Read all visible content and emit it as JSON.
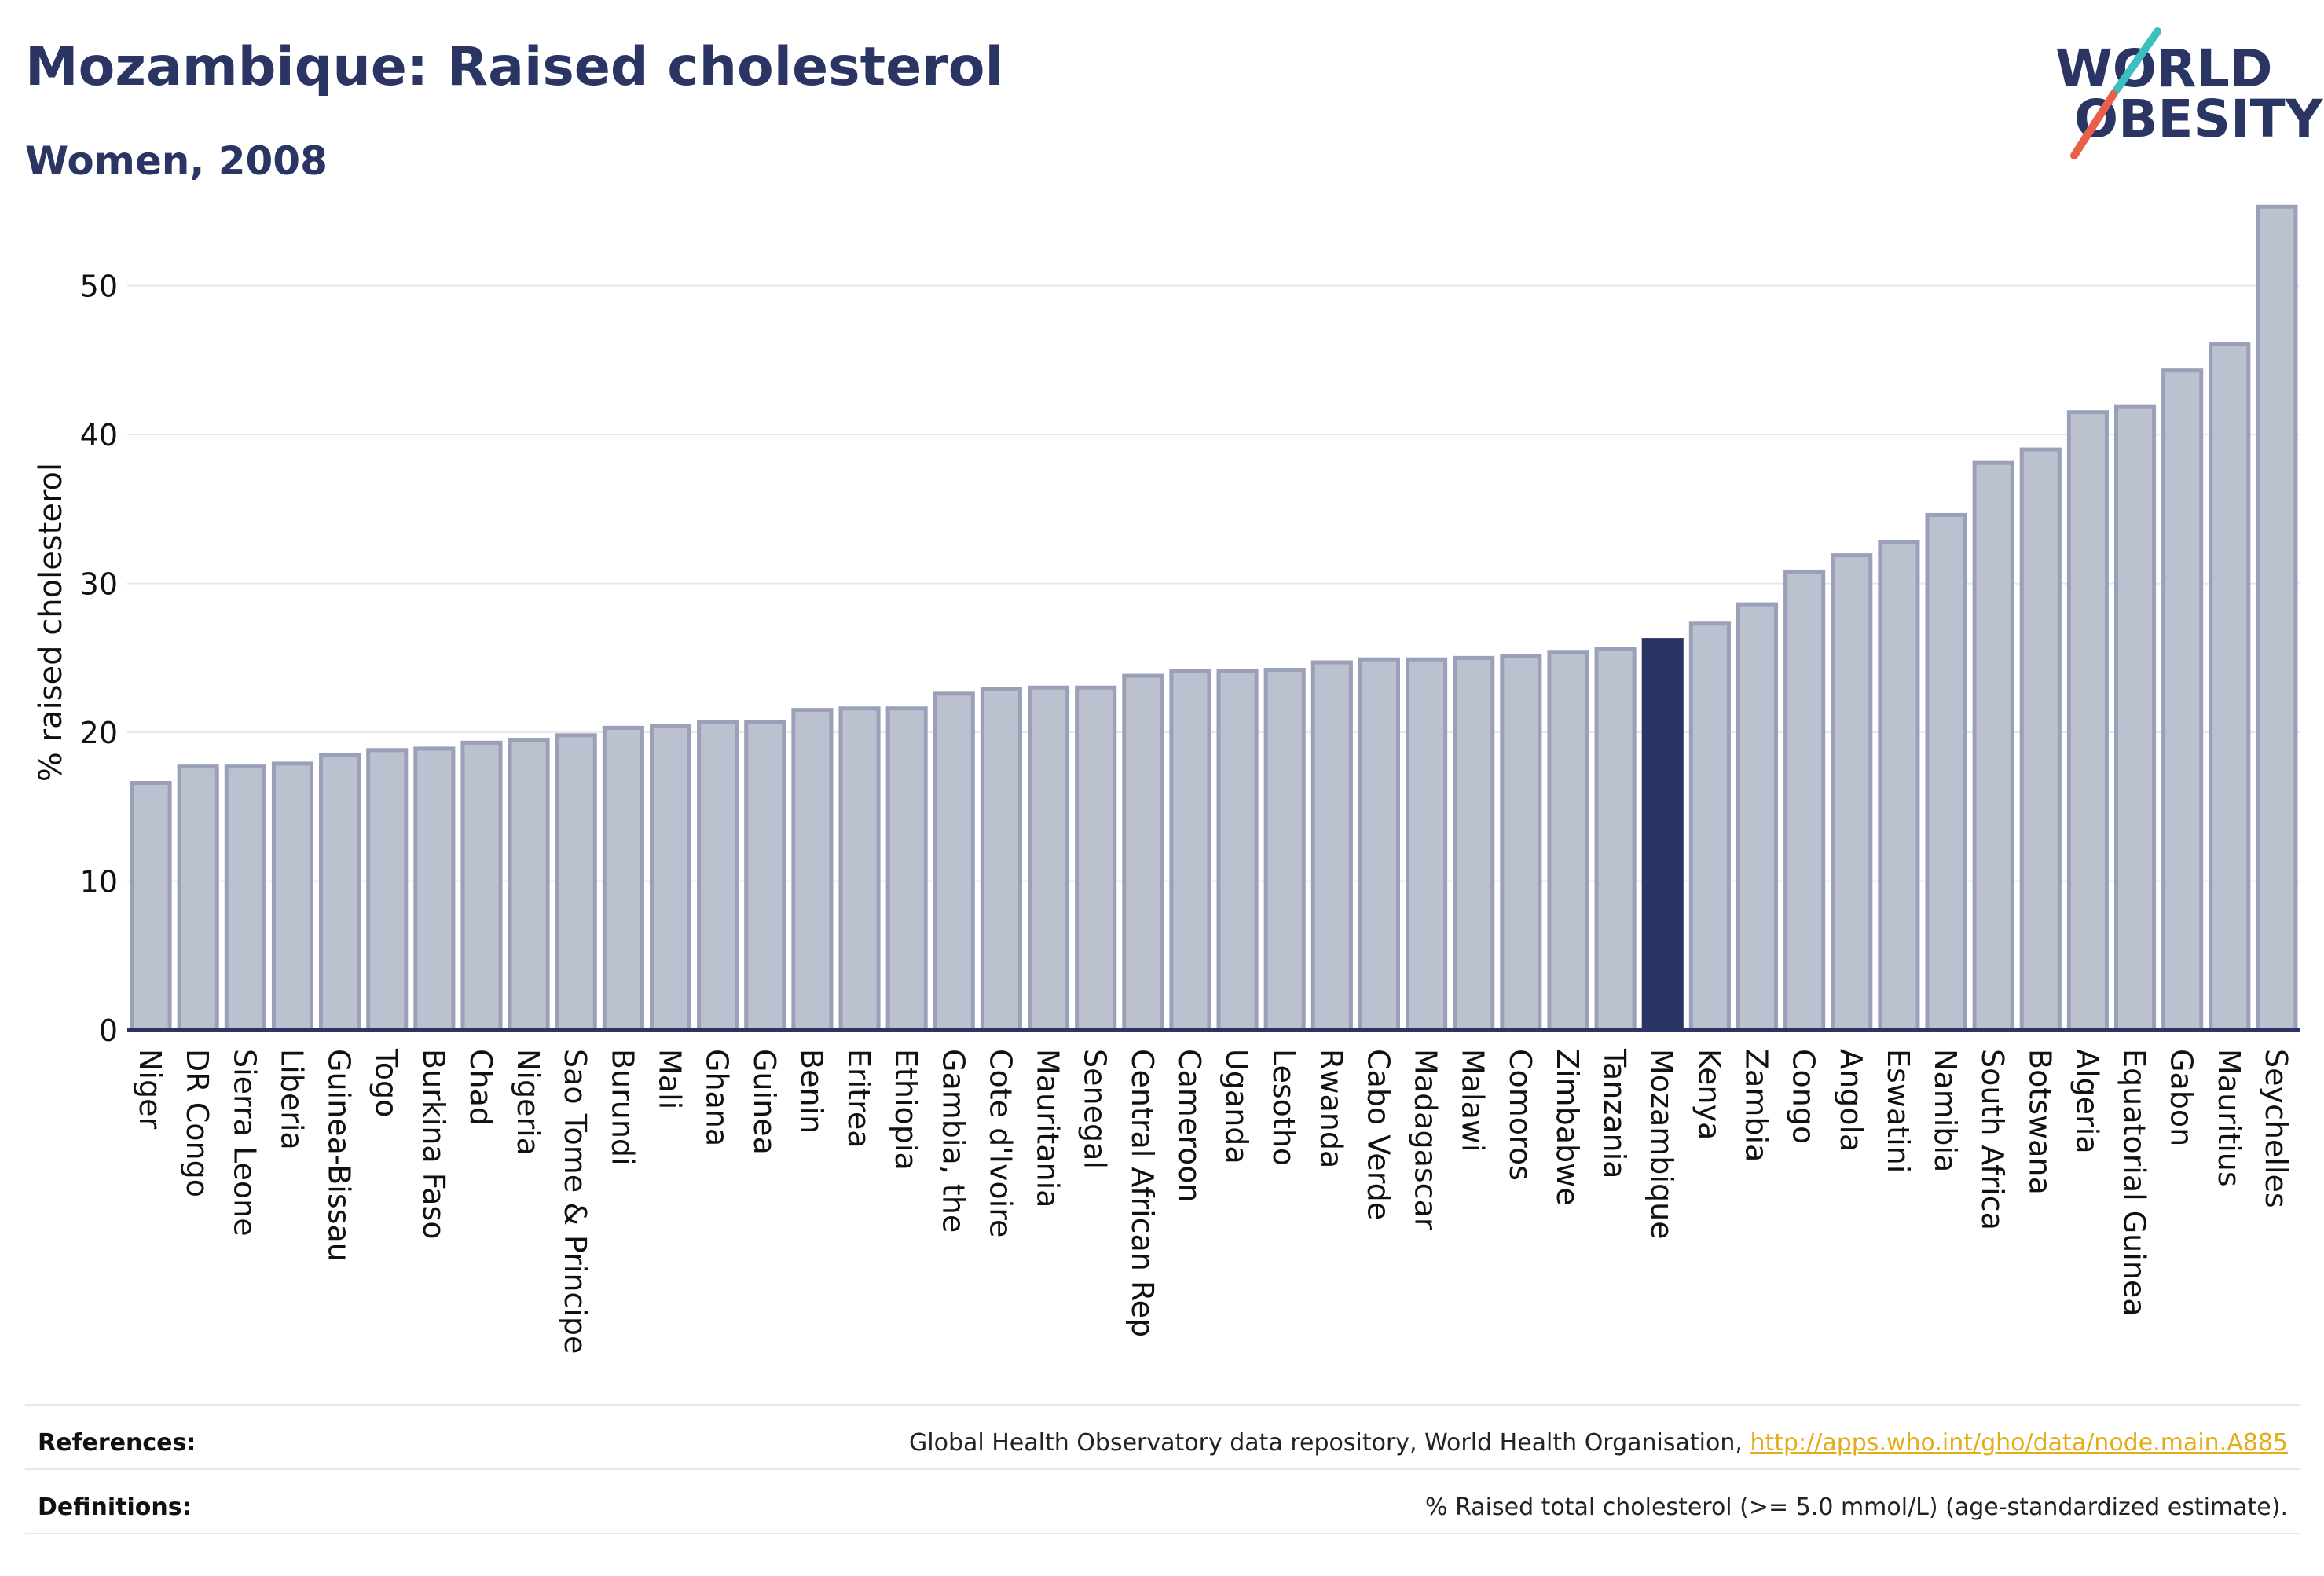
{
  "title": "Mozambique: Raised cholesterol",
  "subtitle": "Women, 2008",
  "logo": {
    "line1": "WORLD",
    "line2": "OBESITY",
    "slash_color_top": "#3bbfbf",
    "slash_color_bottom": "#e8604a"
  },
  "colors": {
    "primary": "#2a3563",
    "bar_fill": "#bcc1d0",
    "bar_stroke": "#9aa0b8",
    "highlight": "#2a3563",
    "grid": "#e6e8ee",
    "link": "#e2ad19"
  },
  "chart_data": {
    "type": "bar",
    "ylabel": "% raised cholesterol",
    "xlabel": "",
    "ylim": [
      0,
      56
    ],
    "yticks": [
      0,
      10,
      20,
      30,
      40,
      50
    ],
    "grid": true,
    "highlight_category": "Mozambique",
    "categories": [
      "Niger",
      "DR Congo",
      "Sierra Leone",
      "Liberia",
      "Guinea-Bissau",
      "Togo",
      "Burkina Faso",
      "Chad",
      "Nigeria",
      "Sao Tome & Principe",
      "Burundi",
      "Mali",
      "Ghana",
      "Guinea",
      "Benin",
      "Eritrea",
      "Ethiopia",
      "Gambia, the",
      "Cote d'Ivoire",
      "Mauritania",
      "Senegal",
      "Central African Rep",
      "Cameroon",
      "Uganda",
      "Lesotho",
      "Rwanda",
      "Cabo Verde",
      "Madagascar",
      "Malawi",
      "Comoros",
      "Zimbabwe",
      "Tanzania",
      "Mozambique",
      "Kenya",
      "Zambia",
      "Congo",
      "Angola",
      "Eswatini",
      "Namibia",
      "South Africa",
      "Botswana",
      "Algeria",
      "Equatorial Guinea",
      "Gabon",
      "Mauritius",
      "Seychelles"
    ],
    "values": [
      16.6,
      17.7,
      17.7,
      17.9,
      18.5,
      18.8,
      18.9,
      19.3,
      19.5,
      19.8,
      20.3,
      20.4,
      20.7,
      20.7,
      21.5,
      21.6,
      21.6,
      22.6,
      22.9,
      23.0,
      23.0,
      23.8,
      24.1,
      24.1,
      24.2,
      24.7,
      24.9,
      24.9,
      25.0,
      25.1,
      25.4,
      25.6,
      26.2,
      27.3,
      28.6,
      30.8,
      31.9,
      32.8,
      34.6,
      38.1,
      39.0,
      41.5,
      41.9,
      44.3,
      46.1,
      55.3
    ]
  },
  "footer": {
    "references_label": "References:",
    "references_text": "Global Health Observatory data repository, World Health Organisation, ",
    "references_link": "http://apps.who.int/gho/data/node.main.A885",
    "definitions_label": "Definitions:",
    "definitions_text": "% Raised total cholesterol (>= 5.0 mmol/L) (age-standardized estimate)."
  }
}
